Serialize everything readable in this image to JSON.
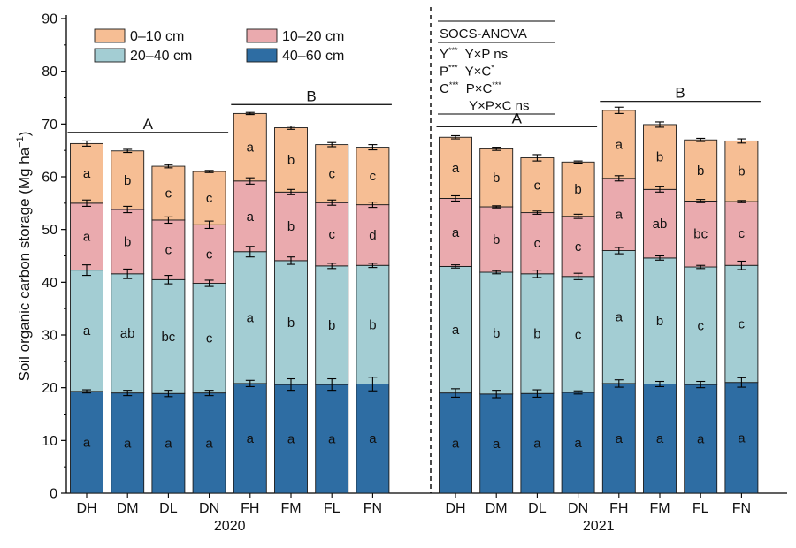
{
  "chart_data": {
    "type": "bar",
    "stacked": true,
    "ylabel": "Soil organic carbon storage (Mg ha",
    "ylabel_sup": "−1",
    "ylabel_close": ")",
    "ylim": [
      0,
      90
    ],
    "yticks": [
      "0",
      "10",
      "20",
      "30",
      "40",
      "50",
      "60",
      "70",
      "80",
      "90"
    ],
    "legend": [
      {
        "label": "0–10 cm",
        "color": "#f6be94"
      },
      {
        "label": "10–20 cm",
        "color": "#eaaaae"
      },
      {
        "label": "20–40 cm",
        "color": "#a3cdd3"
      },
      {
        "label": "40–60 cm",
        "color": "#2e6da3"
      }
    ],
    "series_names": [
      "40–60 cm",
      "20–40 cm",
      "10–20 cm",
      "0–10 cm"
    ],
    "series_colors": [
      "#2e6da3",
      "#a3cdd3",
      "#eaaaae",
      "#f6be94"
    ],
    "panels": [
      {
        "year": "2020",
        "categories": [
          "DH",
          "DM",
          "DL",
          "DN",
          "FH",
          "FM",
          "FL",
          "FN"
        ],
        "cumulative": [
          [
            19.3,
            42.3,
            55.0,
            66.3
          ],
          [
            19.0,
            41.6,
            53.8,
            64.9
          ],
          [
            18.9,
            40.5,
            51.8,
            62.0
          ],
          [
            19.0,
            39.8,
            50.9,
            61.0
          ],
          [
            20.8,
            45.8,
            59.2,
            72.0
          ],
          [
            20.6,
            44.1,
            57.1,
            69.3
          ],
          [
            20.6,
            43.1,
            55.1,
            66.1
          ],
          [
            20.7,
            43.2,
            54.7,
            65.6
          ]
        ],
        "errors": [
          [
            0.3,
            1.0,
            0.6,
            0.5
          ],
          [
            0.5,
            0.9,
            0.6,
            0.3
          ],
          [
            0.6,
            0.8,
            0.6,
            0.3
          ],
          [
            0.5,
            0.6,
            0.7,
            0.2
          ],
          [
            0.6,
            1.0,
            0.6,
            0.2
          ],
          [
            1.1,
            0.7,
            0.5,
            0.3
          ],
          [
            1.1,
            0.5,
            0.5,
            0.4
          ],
          [
            1.3,
            0.4,
            0.5,
            0.5
          ]
        ],
        "letters": [
          [
            "a",
            "a",
            "a",
            "a"
          ],
          [
            "a",
            "ab",
            "b",
            "b"
          ],
          [
            "a",
            "bc",
            "c",
            "c"
          ],
          [
            "a",
            "c",
            "c",
            "c"
          ],
          [
            "a",
            "a",
            "a",
            "a"
          ],
          [
            "a",
            "b",
            "b",
            "b"
          ],
          [
            "a",
            "b",
            "c",
            "c"
          ],
          [
            "a",
            "b",
            "d",
            "c"
          ]
        ],
        "groups": [
          {
            "letter": "A",
            "from": 0,
            "to": 3,
            "y": 68.4
          },
          {
            "letter": "B",
            "from": 4,
            "to": 7,
            "y": 73.7
          }
        ]
      },
      {
        "year": "2021",
        "categories": [
          "DH",
          "DM",
          "DL",
          "DN",
          "FH",
          "FM",
          "FL",
          "FN"
        ],
        "cumulative": [
          [
            19.0,
            43.0,
            55.9,
            67.5
          ],
          [
            18.8,
            41.9,
            54.3,
            65.3
          ],
          [
            18.9,
            41.6,
            53.2,
            63.6
          ],
          [
            19.1,
            41.1,
            52.5,
            62.8
          ],
          [
            20.8,
            46.0,
            59.7,
            72.6
          ],
          [
            20.7,
            44.6,
            57.6,
            69.9
          ],
          [
            20.6,
            42.9,
            55.4,
            67.0
          ],
          [
            21.0,
            43.2,
            55.3,
            66.8
          ]
        ],
        "errors": [
          [
            0.8,
            0.3,
            0.5,
            0.3
          ],
          [
            0.7,
            0.3,
            0.2,
            0.3
          ],
          [
            0.7,
            0.7,
            0.3,
            0.6
          ],
          [
            0.3,
            0.6,
            0.4,
            0.2
          ],
          [
            0.7,
            0.6,
            0.5,
            0.6
          ],
          [
            0.5,
            0.4,
            0.5,
            0.5
          ],
          [
            0.6,
            0.3,
            0.3,
            0.3
          ],
          [
            0.9,
            0.8,
            0.2,
            0.4
          ]
        ],
        "letters": [
          [
            "a",
            "a",
            "a",
            "a"
          ],
          [
            "a",
            "b",
            "b",
            "b"
          ],
          [
            "a",
            "b",
            "c",
            "c"
          ],
          [
            "a",
            "c",
            "c",
            "b"
          ],
          [
            "a",
            "a",
            "a",
            "a"
          ],
          [
            "a",
            "b",
            "ab",
            "b"
          ],
          [
            "a",
            "c",
            "bc",
            "b"
          ],
          [
            "a",
            "c",
            "c",
            "b"
          ]
        ],
        "groups": [
          {
            "letter": "A",
            "from": 0,
            "to": 3,
            "y": 69.5
          },
          {
            "letter": "B",
            "from": 4,
            "to": 7,
            "y": 74.3
          }
        ]
      }
    ],
    "anova": {
      "title": "SOCS-ANOVA",
      "lines": [
        [
          {
            "t": "Y"
          },
          {
            "t": "***",
            "sup": true
          },
          {
            "t": "  Y×P ns"
          }
        ],
        [
          {
            "t": "P"
          },
          {
            "t": "***",
            "sup": true
          },
          {
            "t": "  Y×C"
          },
          {
            "t": "*",
            "sup": true
          }
        ],
        [
          {
            "t": "C"
          },
          {
            "t": "***",
            "sup": true
          },
          {
            "t": "  P×C"
          },
          {
            "t": "***",
            "sup": true
          }
        ],
        [
          {
            "t": "        Y×P×C ns"
          }
        ]
      ]
    }
  }
}
